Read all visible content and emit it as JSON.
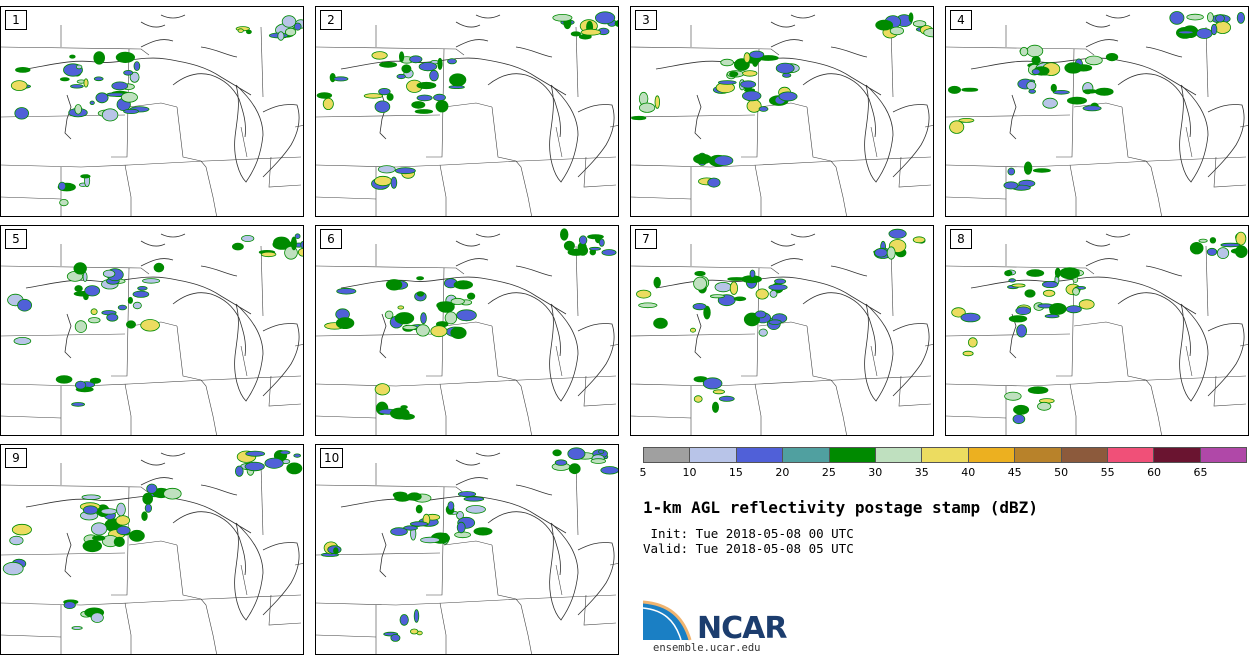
{
  "panels": [
    {
      "label": "1"
    },
    {
      "label": "2"
    },
    {
      "label": "3"
    },
    {
      "label": "4"
    },
    {
      "label": "5"
    },
    {
      "label": "6"
    },
    {
      "label": "7"
    },
    {
      "label": "8"
    },
    {
      "label": "9"
    },
    {
      "label": "10"
    }
  ],
  "colorbar": {
    "colors": [
      "#a0a0a0",
      "#b8c4e8",
      "#5060d8",
      "#50a0a0",
      "#008a00",
      "#bfe0bf",
      "#ecdc60",
      "#ecb020",
      "#b8822a",
      "#8c5a3c",
      "#f05078",
      "#6a1430",
      "#b048a8"
    ],
    "ticks": [
      "5",
      "10",
      "15",
      "20",
      "25",
      "30",
      "35",
      "40",
      "45",
      "50",
      "55",
      "60",
      "65"
    ]
  },
  "title": "1-km AGL reflectivity postage stamp (dBZ)",
  "init": " Init: Tue 2018-05-08 00 UTC",
  "valid": "Valid: Tue 2018-05-08 05 UTC",
  "logo": {
    "text": "NCAR",
    "url": "ensemble.ucar.edu"
  }
}
